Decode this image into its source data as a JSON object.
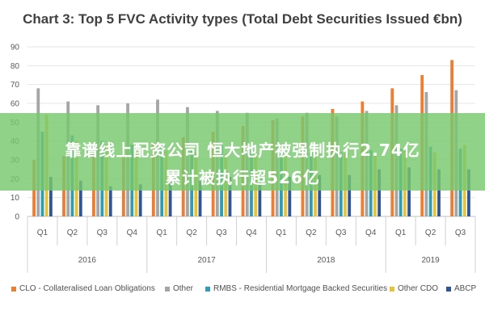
{
  "chart_data": {
    "type": "bar",
    "title": "Chart 3: Top 5 FVC Activity types (Total Debt Securities Issued €bn)",
    "ylim": [
      0,
      90
    ],
    "yticks": [
      0,
      10,
      20,
      30,
      40,
      50,
      60,
      70,
      80,
      90
    ],
    "categories": [
      "Q1",
      "Q2",
      "Q3",
      "Q4",
      "Q1",
      "Q2",
      "Q3",
      "Q4",
      "Q1",
      "Q2",
      "Q3",
      "Q4",
      "Q1",
      "Q2",
      "Q3"
    ],
    "groups": [
      {
        "label": "2016",
        "count": 4
      },
      {
        "label": "2017",
        "count": 4
      },
      {
        "label": "2018",
        "count": 4
      },
      {
        "label": "2019",
        "count": 3
      }
    ],
    "grid": true,
    "legend_position": "bottom",
    "series": [
      {
        "name": "CLO - Collateralised Loan Obligations",
        "color": "#ED7D31",
        "values": [
          30,
          32,
          33,
          36,
          39,
          42,
          45,
          48,
          51,
          53,
          57,
          61,
          68,
          75,
          83
        ]
      },
      {
        "name": "Other",
        "color": "#A5A5A5",
        "values": [
          68,
          61,
          59,
          60,
          62,
          58,
          56,
          55,
          52,
          55,
          53,
          56,
          59,
          66,
          67
        ]
      },
      {
        "name": "RMBS - Residential Mortgage Backed Securities",
        "color": "#2E9DB5",
        "values": [
          45,
          43,
          40,
          38,
          37,
          36,
          38,
          36,
          35,
          34,
          34,
          35,
          36,
          37,
          36
        ]
      },
      {
        "name": "Other CDO",
        "color": "#E7C436",
        "values": [
          54,
          40,
          38,
          37,
          35,
          34,
          33,
          33,
          33,
          33,
          34,
          33,
          35,
          34,
          38
        ]
      },
      {
        "name": "ABCP",
        "color": "#2F5597",
        "values": [
          21,
          19,
          16,
          17,
          18,
          20,
          21,
          20,
          21,
          22,
          22,
          25,
          26,
          25,
          25
        ]
      }
    ]
  },
  "banner": {
    "line1": "靠谱线上配资公司  恒大地产被强制执行2.74亿",
    "line2": "累计被执行超526亿"
  }
}
